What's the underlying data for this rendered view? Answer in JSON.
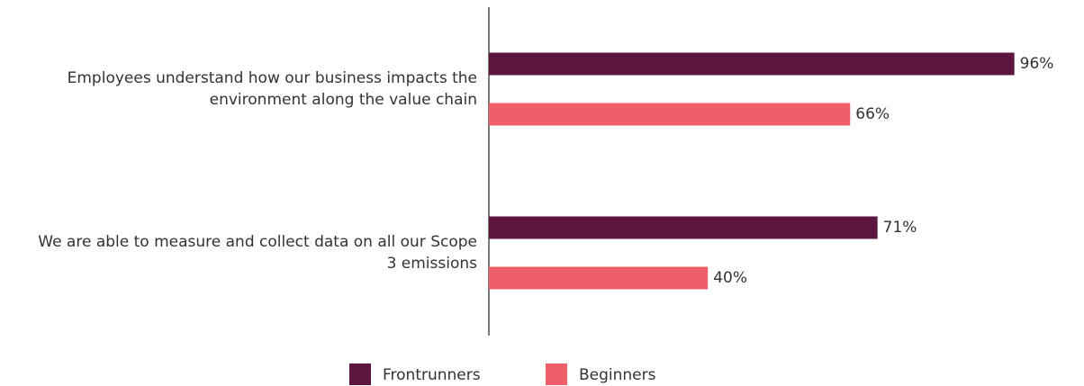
{
  "chart_data": {
    "type": "bar",
    "orientation": "horizontal",
    "categories": [
      "Employees understand how our business impacts the environment along the value chain",
      "We are able to measure and collect data on all our Scope 3 emissions"
    ],
    "series": [
      {
        "name": "Frontrunners",
        "color": "#5c1640",
        "values": [
          96,
          71
        ],
        "value_labels": [
          "96%",
          "71%"
        ]
      },
      {
        "name": "Beginners",
        "color": "#ee5f6a",
        "values": [
          66,
          40
        ],
        "value_labels": [
          "66%",
          "40%"
        ]
      }
    ],
    "xlim": [
      0,
      100
    ],
    "legend": "bottom"
  }
}
